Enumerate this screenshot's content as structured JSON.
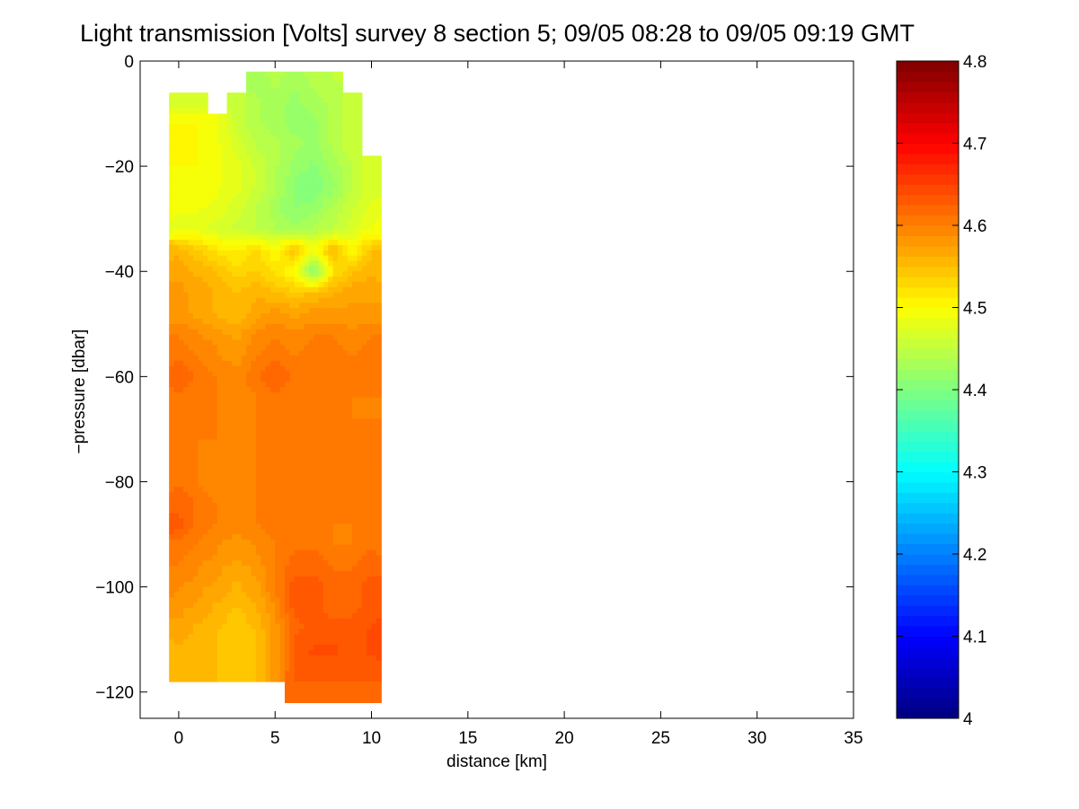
{
  "chart_data": {
    "type": "heatmap",
    "title": "Light transmission [Volts] survey 8 section 5; 09/05 08:28 to 09/05 09:19 GMT",
    "xlabel": "distance [km]",
    "ylabel": "−pressure [dbar]",
    "xlim": [
      -2,
      35
    ],
    "ylim": [
      -125,
      0
    ],
    "xticks": [
      0,
      5,
      10,
      15,
      20,
      25,
      30,
      35
    ],
    "yticks": [
      0,
      -20,
      -40,
      -60,
      -80,
      -100,
      -120
    ],
    "ytick_labels": [
      "0",
      "−20",
      "−40",
      "−60",
      "−80",
      "−100",
      "−120"
    ],
    "colorbar": {
      "label": "",
      "range": [
        4.0,
        4.8
      ],
      "ticks": [
        4,
        4.1,
        4.2,
        4.3,
        4.4,
        4.5,
        4.6,
        4.7,
        4.8
      ],
      "colormap": "jet"
    },
    "grid": false,
    "x": [
      0,
      1,
      2,
      3,
      4,
      5,
      6,
      7,
      8,
      9,
      10
    ],
    "y": [
      -4,
      -8,
      -12,
      -16,
      -20,
      -24,
      -28,
      -32,
      -36,
      -40,
      -44,
      -48,
      -52,
      -56,
      -60,
      -64,
      -68,
      -72,
      -76,
      -80,
      -84,
      -88,
      -92,
      -96,
      -100,
      -104,
      -108,
      -112,
      -116,
      -120
    ],
    "z": [
      [
        null,
        null,
        null,
        null,
        4.43,
        4.44,
        4.43,
        4.44,
        4.45,
        null,
        null
      ],
      [
        4.47,
        4.47,
        null,
        4.46,
        4.44,
        4.43,
        4.42,
        4.43,
        4.44,
        4.46,
        null
      ],
      [
        4.5,
        4.5,
        4.49,
        4.46,
        4.44,
        4.43,
        4.42,
        4.42,
        4.44,
        4.46,
        null
      ],
      [
        4.5,
        4.5,
        4.49,
        4.47,
        4.45,
        4.44,
        4.43,
        4.42,
        4.44,
        4.46,
        null
      ],
      [
        4.5,
        4.5,
        4.49,
        4.48,
        4.46,
        4.44,
        4.42,
        4.41,
        4.43,
        4.45,
        4.47
      ],
      [
        4.49,
        4.5,
        4.49,
        4.48,
        4.46,
        4.44,
        4.41,
        4.4,
        4.42,
        4.45,
        4.47
      ],
      [
        4.49,
        4.49,
        4.48,
        4.47,
        4.45,
        4.43,
        4.41,
        4.42,
        4.44,
        4.46,
        4.48
      ],
      [
        4.48,
        4.48,
        4.47,
        4.46,
        4.45,
        4.44,
        4.43,
        4.44,
        4.45,
        4.47,
        4.49
      ],
      [
        4.56,
        4.54,
        4.52,
        4.51,
        4.53,
        4.5,
        4.55,
        4.49,
        4.56,
        4.5,
        4.55
      ],
      [
        4.57,
        4.56,
        4.55,
        4.53,
        4.54,
        4.52,
        4.5,
        4.4,
        4.52,
        4.55,
        4.56
      ],
      [
        4.58,
        4.57,
        4.56,
        4.55,
        4.56,
        4.55,
        4.54,
        4.55,
        4.56,
        4.57,
        4.57
      ],
      [
        4.58,
        4.57,
        4.56,
        4.55,
        4.57,
        4.58,
        4.57,
        4.58,
        4.58,
        4.58,
        4.58
      ],
      [
        4.6,
        4.59,
        4.58,
        4.57,
        4.59,
        4.6,
        4.59,
        4.6,
        4.6,
        4.59,
        4.6
      ],
      [
        4.61,
        4.6,
        4.59,
        4.58,
        4.6,
        4.61,
        4.6,
        4.61,
        4.61,
        4.6,
        4.61
      ],
      [
        4.62,
        4.61,
        4.6,
        4.59,
        4.61,
        4.62,
        4.61,
        4.61,
        4.61,
        4.6,
        4.61
      ],
      [
        4.61,
        4.61,
        4.6,
        4.59,
        4.6,
        4.61,
        4.6,
        4.61,
        4.61,
        4.6,
        4.6
      ],
      [
        4.61,
        4.61,
        4.6,
        4.59,
        4.6,
        4.61,
        4.61,
        4.61,
        4.61,
        4.6,
        4.6
      ],
      [
        4.61,
        4.6,
        4.6,
        4.59,
        4.6,
        4.6,
        4.61,
        4.61,
        4.61,
        4.61,
        4.61
      ],
      [
        4.61,
        4.6,
        4.59,
        4.59,
        4.6,
        4.61,
        4.61,
        4.61,
        4.61,
        4.61,
        4.61
      ],
      [
        4.61,
        4.6,
        4.59,
        4.59,
        4.6,
        4.61,
        4.61,
        4.61,
        4.61,
        4.61,
        4.61
      ],
      [
        4.62,
        4.61,
        4.6,
        4.59,
        4.6,
        4.61,
        4.61,
        4.61,
        4.6,
        4.61,
        4.61
      ],
      [
        4.63,
        4.61,
        4.6,
        4.59,
        4.6,
        4.61,
        4.61,
        4.61,
        4.6,
        4.6,
        4.61
      ],
      [
        4.61,
        4.6,
        4.59,
        4.58,
        4.59,
        4.6,
        4.61,
        4.61,
        4.6,
        4.6,
        4.61
      ],
      [
        4.6,
        4.59,
        4.58,
        4.57,
        4.58,
        4.6,
        4.62,
        4.62,
        4.61,
        4.61,
        4.62
      ],
      [
        4.59,
        4.58,
        4.57,
        4.56,
        4.57,
        4.6,
        4.63,
        4.63,
        4.62,
        4.62,
        4.63
      ],
      [
        4.58,
        4.57,
        4.56,
        4.55,
        4.56,
        4.59,
        4.63,
        4.63,
        4.62,
        4.62,
        4.63
      ],
      [
        4.57,
        4.56,
        4.55,
        4.54,
        4.55,
        4.58,
        4.62,
        4.63,
        4.63,
        4.63,
        4.64
      ],
      [
        4.56,
        4.56,
        4.55,
        4.54,
        4.55,
        4.58,
        4.63,
        4.64,
        4.64,
        4.63,
        4.64
      ],
      [
        4.56,
        4.56,
        4.55,
        4.54,
        4.55,
        4.58,
        4.63,
        4.63,
        4.63,
        4.63,
        4.63
      ],
      [
        null,
        null,
        null,
        null,
        null,
        null,
        4.62,
        4.62,
        4.62,
        4.62,
        4.62
      ]
    ]
  }
}
